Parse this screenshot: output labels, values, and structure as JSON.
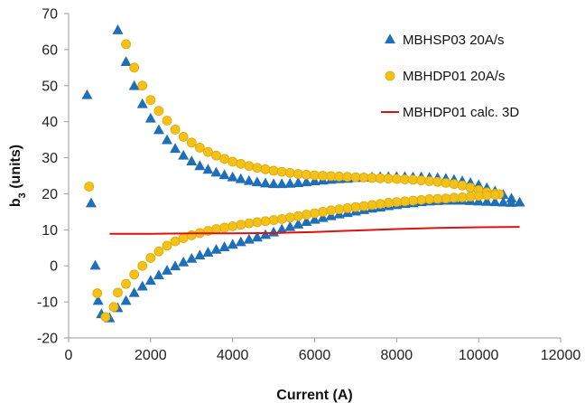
{
  "chart_data": {
    "type": "scatter",
    "title": "",
    "xlabel": "Current (A)",
    "ylabel": "b3 (units)",
    "ylabel_main": "b",
    "ylabel_sub": "3",
    "ylabel_rest": " (units)",
    "xlim": [
      0,
      12000
    ],
    "ylim": [
      -20,
      70
    ],
    "x_ticks": [
      "0",
      "2000",
      "4000",
      "6000",
      "8000",
      "10000",
      "12000"
    ],
    "y_ticks": [
      "-20",
      "-10",
      "0",
      "10",
      "20",
      "30",
      "40",
      "50",
      "60",
      "70"
    ],
    "grid": false,
    "legend_position": "top-right",
    "colors": {
      "MBHSP03": "#1f6fb8",
      "MBHDP01": "#f2c21b",
      "MBHDP01_edge": "#e0a800",
      "calc": "#dd1111"
    },
    "series": [
      {
        "name": "MBHSP03 20A/s",
        "marker": "triangle",
        "points": [
          [
            450,
            47.3
          ],
          [
            550,
            17.3
          ],
          [
            650,
            0.0
          ],
          [
            720,
            -9.8
          ],
          [
            800,
            -13.5
          ],
          [
            1000,
            -14.6
          ],
          [
            1200,
            65.3
          ],
          [
            1400,
            56.5
          ],
          [
            1600,
            49.8
          ],
          [
            1800,
            44.8
          ],
          [
            2000,
            40.8
          ],
          [
            2200,
            37.6
          ],
          [
            2400,
            34.8
          ],
          [
            2600,
            32.4
          ],
          [
            2800,
            30.5
          ],
          [
            3000,
            28.9
          ],
          [
            3200,
            27.6
          ],
          [
            3400,
            26.6
          ],
          [
            3600,
            25.8
          ],
          [
            3800,
            25.1
          ],
          [
            4000,
            24.5
          ],
          [
            4200,
            24.0
          ],
          [
            4400,
            23.5
          ],
          [
            4600,
            23.1
          ],
          [
            4800,
            22.8
          ],
          [
            5000,
            22.6
          ],
          [
            5200,
            22.6
          ],
          [
            5400,
            22.7
          ],
          [
            5600,
            22.9
          ],
          [
            5800,
            23.1
          ],
          [
            6000,
            23.4
          ],
          [
            6200,
            23.6
          ],
          [
            6400,
            23.8
          ],
          [
            6600,
            24.0
          ],
          [
            6800,
            24.1
          ],
          [
            7000,
            24.3
          ],
          [
            7200,
            24.4
          ],
          [
            7400,
            24.5
          ],
          [
            7600,
            24.6
          ],
          [
            7800,
            24.6
          ],
          [
            8000,
            24.6
          ],
          [
            8200,
            24.6
          ],
          [
            8400,
            24.5
          ],
          [
            8600,
            24.5
          ],
          [
            8800,
            24.4
          ],
          [
            9000,
            24.3
          ],
          [
            9200,
            24.1
          ],
          [
            9400,
            23.8
          ],
          [
            9600,
            23.4
          ],
          [
            9800,
            22.9
          ],
          [
            10000,
            22.3
          ],
          [
            10200,
            21.5
          ],
          [
            10400,
            20.6
          ],
          [
            10600,
            19.6
          ],
          [
            10800,
            18.6
          ],
          [
            11000,
            17.5
          ],
          [
            10800,
            17.4
          ],
          [
            10600,
            17.5
          ],
          [
            10400,
            17.6
          ],
          [
            10200,
            17.7
          ],
          [
            10000,
            17.8
          ],
          [
            9800,
            17.9
          ],
          [
            9600,
            18.0
          ],
          [
            9400,
            18.0
          ],
          [
            9200,
            18.0
          ],
          [
            9000,
            17.9
          ],
          [
            8800,
            17.8
          ],
          [
            8600,
            17.6
          ],
          [
            8400,
            17.3
          ],
          [
            8200,
            17.1
          ],
          [
            8000,
            16.8
          ],
          [
            7800,
            16.5
          ],
          [
            7600,
            16.1
          ],
          [
            7400,
            15.8
          ],
          [
            7200,
            15.4
          ],
          [
            7000,
            15.0
          ],
          [
            6800,
            14.6
          ],
          [
            6600,
            14.2
          ],
          [
            6400,
            13.7
          ],
          [
            6200,
            13.2
          ],
          [
            6000,
            12.7
          ],
          [
            5800,
            12.1
          ],
          [
            5600,
            11.4
          ],
          [
            5400,
            10.7
          ],
          [
            5200,
            10.0
          ],
          [
            5000,
            9.2
          ],
          [
            4800,
            8.5
          ],
          [
            4600,
            7.8
          ],
          [
            4400,
            7.2
          ],
          [
            4200,
            6.5
          ],
          [
            4000,
            5.8
          ],
          [
            3800,
            5.1
          ],
          [
            3600,
            4.4
          ],
          [
            3400,
            3.6
          ],
          [
            3200,
            2.8
          ],
          [
            3000,
            1.9
          ],
          [
            2800,
            0.9
          ],
          [
            2600,
            -0.2
          ],
          [
            2400,
            -1.4
          ],
          [
            2200,
            -2.7
          ],
          [
            2000,
            -4.2
          ],
          [
            1800,
            -5.8
          ],
          [
            1600,
            -7.6
          ],
          [
            1400,
            -9.8
          ],
          [
            1200,
            -11.8
          ]
        ]
      },
      {
        "name": "MBHDP01 20A/s",
        "marker": "circle",
        "points": [
          [
            500,
            22.0
          ],
          [
            700,
            -7.6
          ],
          [
            900,
            -14.2
          ],
          [
            1100,
            -11.4
          ],
          [
            1400,
            61.5
          ],
          [
            1600,
            55.0
          ],
          [
            1800,
            50.0
          ],
          [
            2000,
            46.0
          ],
          [
            2200,
            43.0
          ],
          [
            2400,
            40.3
          ],
          [
            2600,
            37.8
          ],
          [
            2800,
            35.8
          ],
          [
            3000,
            34.2
          ],
          [
            3200,
            32.8
          ],
          [
            3400,
            31.6
          ],
          [
            3600,
            30.6
          ],
          [
            3800,
            29.7
          ],
          [
            4000,
            28.9
          ],
          [
            4200,
            28.3
          ],
          [
            4400,
            27.7
          ],
          [
            4600,
            27.2
          ],
          [
            4800,
            26.8
          ],
          [
            5000,
            26.4
          ],
          [
            5200,
            26.1
          ],
          [
            5400,
            25.8
          ],
          [
            5600,
            25.5
          ],
          [
            5800,
            25.3
          ],
          [
            6000,
            25.1
          ],
          [
            6200,
            25.0
          ],
          [
            6400,
            24.9
          ],
          [
            6600,
            24.8
          ],
          [
            6800,
            24.7
          ],
          [
            7000,
            24.6
          ],
          [
            7200,
            24.5
          ],
          [
            7400,
            24.4
          ],
          [
            7600,
            24.3
          ],
          [
            7800,
            24.2
          ],
          [
            8000,
            24.1
          ],
          [
            8200,
            24.0
          ],
          [
            8400,
            23.9
          ],
          [
            8600,
            23.7
          ],
          [
            8800,
            23.5
          ],
          [
            9000,
            23.3
          ],
          [
            9200,
            23.0
          ],
          [
            9400,
            22.7
          ],
          [
            9600,
            22.3
          ],
          [
            9800,
            21.7
          ],
          [
            10000,
            21.0
          ],
          [
            10200,
            20.4
          ],
          [
            10400,
            20.0
          ],
          [
            10500,
            19.9
          ],
          [
            10400,
            19.7
          ],
          [
            10200,
            19.6
          ],
          [
            10000,
            19.4
          ],
          [
            9800,
            19.2
          ],
          [
            9600,
            19.0
          ],
          [
            9400,
            18.9
          ],
          [
            9200,
            18.7
          ],
          [
            9000,
            18.6
          ],
          [
            8800,
            18.5
          ],
          [
            8600,
            18.3
          ],
          [
            8400,
            18.1
          ],
          [
            8200,
            17.9
          ],
          [
            8000,
            17.7
          ],
          [
            7800,
            17.5
          ],
          [
            7600,
            17.2
          ],
          [
            7400,
            16.9
          ],
          [
            7200,
            16.6
          ],
          [
            7000,
            16.3
          ],
          [
            6800,
            16.0
          ],
          [
            6600,
            15.7
          ],
          [
            6400,
            15.4
          ],
          [
            6200,
            15.0
          ],
          [
            6000,
            14.6
          ],
          [
            5800,
            14.2
          ],
          [
            5600,
            13.8
          ],
          [
            5400,
            13.4
          ],
          [
            5200,
            13.0
          ],
          [
            5000,
            12.7
          ],
          [
            4800,
            12.4
          ],
          [
            4600,
            12.1
          ],
          [
            4400,
            11.8
          ],
          [
            4200,
            11.4
          ],
          [
            4000,
            11.0
          ],
          [
            3800,
            10.6
          ],
          [
            3600,
            10.2
          ],
          [
            3400,
            9.7
          ],
          [
            3200,
            9.1
          ],
          [
            3000,
            8.5
          ],
          [
            2800,
            7.7
          ],
          [
            2600,
            6.8
          ],
          [
            2400,
            5.6
          ],
          [
            2200,
            4.0
          ],
          [
            2000,
            2.2
          ],
          [
            1800,
            0.0
          ],
          [
            1600,
            -2.4
          ],
          [
            1400,
            -5.0
          ],
          [
            1200,
            -7.4
          ]
        ]
      },
      {
        "name": "MBHDP01 calc. 3D",
        "marker": "line",
        "points": [
          [
            1000,
            8.9
          ],
          [
            2000,
            8.9
          ],
          [
            3000,
            9.0
          ],
          [
            4000,
            9.0
          ],
          [
            5000,
            9.1
          ],
          [
            6000,
            9.4
          ],
          [
            7000,
            9.8
          ],
          [
            8000,
            10.2
          ],
          [
            9000,
            10.5
          ],
          [
            10000,
            10.7
          ],
          [
            11000,
            10.8
          ]
        ]
      }
    ]
  }
}
